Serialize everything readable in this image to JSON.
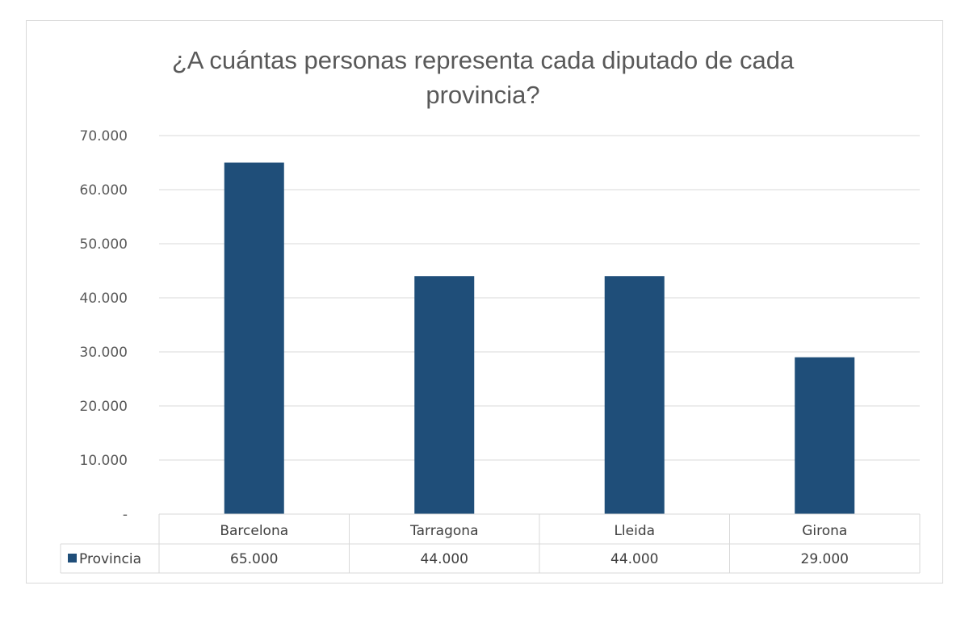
{
  "chart_data": {
    "type": "bar",
    "title_lines": [
      "¿A cuántas personas representa cada diputado de cada",
      "provincia?"
    ],
    "categories": [
      "Barcelona",
      "Tarragona",
      "Lleida",
      "Girona"
    ],
    "series": [
      {
        "name": "Provincia",
        "values": [
          65000,
          44000,
          44000,
          29000
        ],
        "value_labels": [
          "65.000",
          "44.000",
          "44.000",
          "29.000"
        ],
        "color": "#1f4e79"
      }
    ],
    "y_ticks": [
      0,
      10000,
      20000,
      30000,
      40000,
      50000,
      60000,
      70000
    ],
    "y_tick_labels": [
      "-",
      "10.000",
      "20.000",
      "30.000",
      "40.000",
      "50.000",
      "60.000",
      "70.000"
    ],
    "ylim": [
      0,
      70000
    ],
    "grid": true,
    "data_table": true,
    "xlabel": "",
    "ylabel": ""
  }
}
